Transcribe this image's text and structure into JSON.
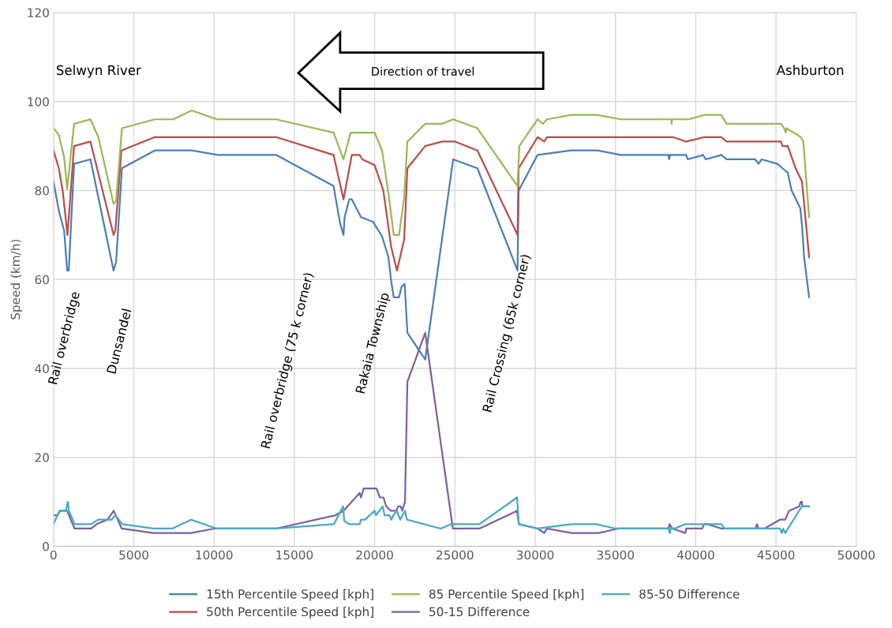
{
  "chart_data": {
    "type": "line",
    "ylabel": "Speed (km/h)",
    "xlim": [
      0,
      50000
    ],
    "xticks": [
      0,
      5000,
      10000,
      15000,
      20000,
      25000,
      30000,
      35000,
      40000,
      45000,
      50000
    ],
    "ylim": [
      0,
      120
    ],
    "yticks": [
      0,
      20,
      40,
      60,
      80,
      100,
      120
    ],
    "grid": true,
    "legend": "bottom",
    "marker": "none",
    "line_style": "solid",
    "annotations": [
      "Selwyn River",
      "Ashburton",
      "Direction of travel",
      "Rail overbridge",
      "Dunsandel",
      "Rail overbridge (75 k corner)",
      "Rakaia Township",
      "Rail Crossing (65k corner)"
    ],
    "series": [
      {
        "name": "15th Percentile Speed [kph]",
        "color": "#4a7ebb",
        "x": [
          0,
          330,
          660,
          850,
          950,
          1280,
          2300,
          3740,
          3900,
          4260,
          6310,
          8610,
          10250,
          13860,
          17440,
          17850,
          18060,
          18130,
          18420,
          18580,
          19150,
          19890,
          20460,
          20860,
          21030,
          21190,
          21520,
          21680,
          21870,
          22040,
          23150,
          24890,
          26400,
          28900,
          28970,
          30150,
          32240,
          33860,
          35330,
          38300,
          38340,
          38400,
          39400,
          39500,
          40460,
          40620,
          41600,
          41920,
          43700,
          43910,
          44110,
          45080,
          45400,
          45730,
          45970,
          46510,
          46620,
          46750,
          47060
        ],
        "values": [
          82,
          75.5,
          71,
          62,
          62,
          86,
          87,
          62,
          64,
          85,
          89,
          89,
          88,
          88,
          81,
          72.6,
          70,
          74,
          78,
          78,
          74,
          73,
          69.7,
          65,
          59.6,
          56,
          56,
          58.4,
          59,
          48,
          42,
          87,
          85,
          62,
          80,
          88,
          89,
          89,
          88,
          88,
          87,
          88,
          88,
          87,
          88,
          87,
          88,
          87,
          87,
          86,
          87,
          86,
          85,
          84,
          80,
          76,
          72,
          65,
          56
        ]
      },
      {
        "name": "50th Percentile Speed [kph]",
        "color": "#be4b48",
        "x": [
          0,
          330,
          570,
          870,
          1280,
          2300,
          3740,
          3850,
          4230,
          6310,
          13860,
          17440,
          18060,
          18580,
          19070,
          19230,
          20000,
          20540,
          21030,
          21390,
          21840,
          22040,
          23150,
          24200,
          25020,
          26400,
          28900,
          28970,
          30150,
          30560,
          30730,
          32270,
          38590,
          39400,
          40540,
          41590,
          41920,
          45300,
          45400,
          45730,
          46220,
          46620,
          47060
        ],
        "values": [
          89,
          85,
          80,
          70,
          90,
          91,
          70,
          71,
          89,
          92,
          92,
          88,
          78,
          88,
          88,
          87,
          85.7,
          80,
          67.3,
          62,
          69,
          85,
          90,
          91,
          91,
          89,
          70,
          85,
          92,
          91,
          92,
          92,
          92,
          91,
          92,
          92,
          91,
          91,
          90,
          90,
          85,
          82,
          65
        ]
      },
      {
        "name": "85 Percentile Speed [kph]",
        "color": "#98b954",
        "x": [
          0,
          330,
          660,
          850,
          1280,
          2300,
          2790,
          3740,
          3900,
          4260,
          6310,
          7460,
          8610,
          10170,
          13860,
          17440,
          18060,
          18500,
          20000,
          20460,
          20860,
          21190,
          21520,
          21840,
          22040,
          23150,
          24200,
          24890,
          26400,
          28900,
          29010,
          30150,
          30480,
          30730,
          32270,
          33860,
          35330,
          38480,
          38500,
          38520,
          39560,
          40540,
          41590,
          41920,
          45320,
          45500,
          45600,
          45650,
          46540,
          46700,
          47060
        ],
        "values": [
          94,
          92.5,
          87.5,
          80.3,
          95,
          96,
          92,
          77,
          77.7,
          94,
          96,
          96,
          98,
          96,
          96,
          93,
          87,
          93,
          93,
          89,
          79.4,
          70,
          70,
          78.5,
          91,
          95,
          95,
          96,
          94,
          81,
          90,
          96,
          95,
          96,
          97,
          97,
          96,
          96,
          95,
          96,
          96,
          97,
          97,
          95,
          95,
          94,
          93,
          94,
          92,
          91,
          74
        ]
      },
      {
        "name": "50-15 Difference",
        "color": "#7d60a0",
        "x": [
          0,
          250,
          420,
          840,
          960,
          1310,
          2350,
          2690,
          3360,
          3750,
          4250,
          6220,
          8570,
          10000,
          13860,
          17560,
          18060,
          18560,
          19070,
          19150,
          19320,
          20110,
          20330,
          20550,
          20720,
          21000,
          21340,
          21470,
          21620,
          21720,
          21890,
          22040,
          23150,
          24870,
          26530,
          28870,
          28980,
          30160,
          30560,
          30730,
          32260,
          33950,
          35160,
          38310,
          38360,
          38550,
          39360,
          39400,
          40400,
          40520,
          40730,
          41610,
          43710,
          43820,
          43900,
          44280,
          45240,
          45570,
          45810,
          46450,
          46530,
          46610,
          46640,
          47060
        ],
        "values": [
          7,
          7,
          8,
          8,
          7,
          4,
          4,
          5,
          6,
          8,
          4,
          3,
          3,
          4,
          4,
          7,
          8,
          10,
          12,
          11,
          13,
          13,
          11,
          11,
          9,
          8,
          8,
          9,
          9,
          8,
          10,
          37,
          48,
          4,
          4,
          8,
          5,
          4,
          3,
          4,
          3,
          3,
          4,
          4,
          5,
          4,
          3,
          4,
          4,
          5,
          5,
          4,
          4,
          5,
          4,
          4,
          6,
          6,
          8,
          9,
          10,
          10,
          9,
          9
        ]
      },
      {
        "name": "85-50 Difference",
        "color": "#46aac5",
        "x": [
          0,
          370,
          760,
          890,
          960,
          1310,
          2350,
          2770,
          3610,
          3860,
          4280,
          6220,
          7390,
          8570,
          10160,
          13860,
          17470,
          18030,
          18110,
          18400,
          19070,
          19150,
          19400,
          20000,
          20080,
          20500,
          20620,
          20920,
          21040,
          21170,
          21390,
          21590,
          21890,
          22010,
          24110,
          24780,
          26530,
          28870,
          28980,
          30160,
          32260,
          33790,
          35000,
          38310,
          38390,
          38450,
          38680,
          39360,
          41610,
          41780,
          45240,
          45360,
          45450,
          45570,
          46610,
          46940,
          47060
        ],
        "values": [
          5,
          8,
          8,
          10,
          8,
          5,
          5,
          6,
          6,
          7,
          5,
          4,
          4,
          6,
          4,
          4,
          5,
          9,
          5.7,
          5,
          5,
          6,
          6,
          8,
          7,
          9,
          7,
          7,
          6,
          7,
          8,
          6,
          8,
          6,
          4,
          5,
          5,
          11,
          5,
          4,
          5,
          5,
          4,
          4,
          3,
          4,
          4,
          5,
          5,
          4,
          4,
          3,
          4,
          3,
          9,
          9,
          9
        ]
      }
    ]
  }
}
